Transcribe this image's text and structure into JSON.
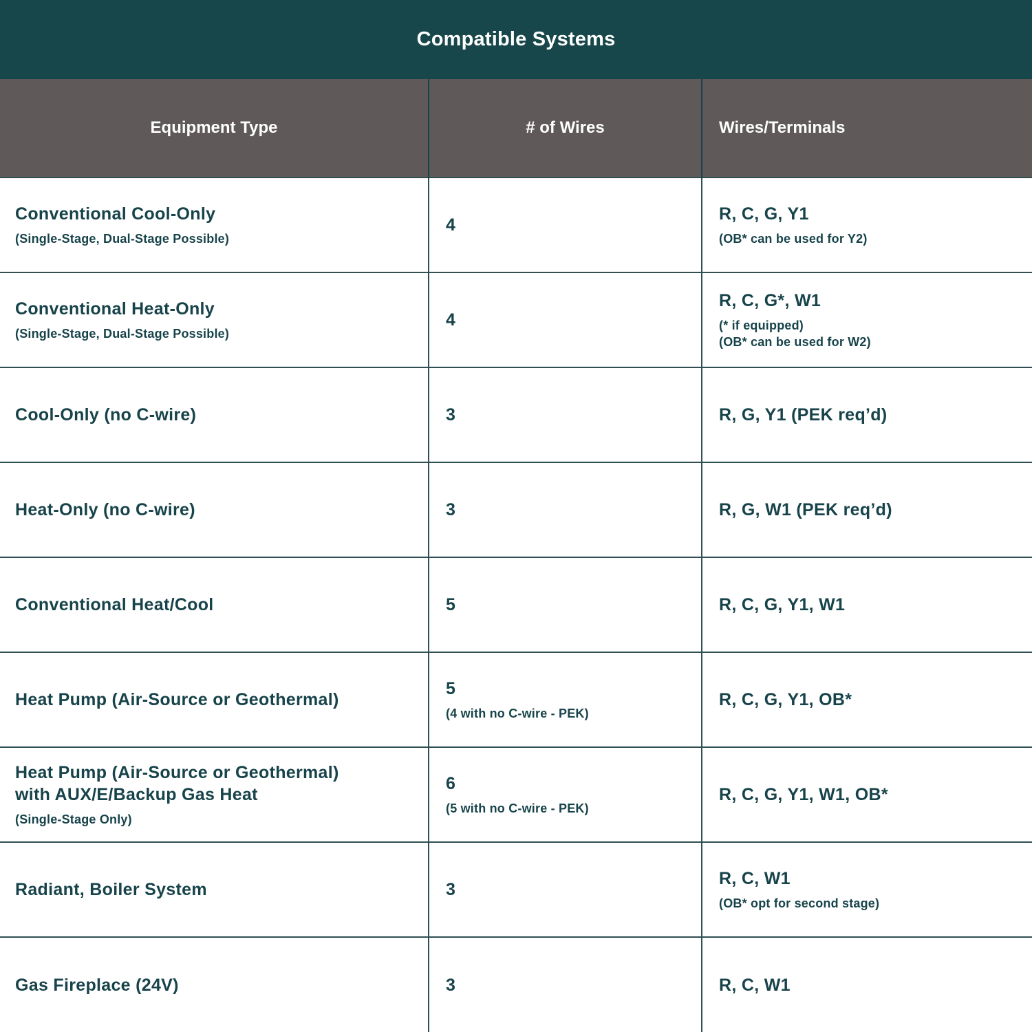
{
  "title": "Compatible Systems",
  "colors": {
    "title_bg": "#17474a",
    "header_bg": "#5f5a59",
    "text": "#17434a"
  },
  "columns": [
    "Equipment Type",
    "# of Wires",
    "Wires/Terminals"
  ],
  "rows": [
    {
      "equipment": {
        "lines": [
          "Conventional Cool-Only"
        ],
        "notes": [
          "(Single-Stage, Dual-Stage Possible)"
        ]
      },
      "wires": {
        "lines": [
          "4"
        ],
        "notes": []
      },
      "terminals": {
        "lines": [
          "R, C, G, Y1"
        ],
        "notes": [
          "(OB* can be used for Y2)"
        ]
      }
    },
    {
      "equipment": {
        "lines": [
          "Conventional Heat-Only"
        ],
        "notes": [
          "(Single-Stage, Dual-Stage Possible)"
        ]
      },
      "wires": {
        "lines": [
          "4"
        ],
        "notes": []
      },
      "terminals": {
        "lines": [
          "R, C, G*, W1"
        ],
        "notes": [
          "(* if equipped)",
          "(OB* can be used for W2)"
        ]
      }
    },
    {
      "equipment": {
        "lines": [
          "Cool-Only (no C-wire)"
        ],
        "notes": []
      },
      "wires": {
        "lines": [
          "3"
        ],
        "notes": []
      },
      "terminals": {
        "lines": [
          "R, G, Y1 (PEK req’d)"
        ],
        "notes": []
      }
    },
    {
      "equipment": {
        "lines": [
          "Heat-Only (no C-wire)"
        ],
        "notes": []
      },
      "wires": {
        "lines": [
          "3"
        ],
        "notes": []
      },
      "terminals": {
        "lines": [
          "R, G, W1 (PEK req’d)"
        ],
        "notes": []
      }
    },
    {
      "equipment": {
        "lines": [
          "Conventional Heat/Cool"
        ],
        "notes": []
      },
      "wires": {
        "lines": [
          "5"
        ],
        "notes": []
      },
      "terminals": {
        "lines": [
          "R, C, G, Y1, W1"
        ],
        "notes": []
      }
    },
    {
      "equipment": {
        "lines": [
          "Heat Pump (Air-Source or Geothermal)"
        ],
        "notes": []
      },
      "wires": {
        "lines": [
          "5"
        ],
        "notes": [
          "(4 with no C-wire - PEK)"
        ]
      },
      "terminals": {
        "lines": [
          "R, C, G, Y1, OB*"
        ],
        "notes": []
      }
    },
    {
      "equipment": {
        "lines": [
          "Heat Pump (Air-Source or Geothermal)",
          "with AUX/E/Backup Gas Heat"
        ],
        "notes": [
          "(Single-Stage Only)"
        ]
      },
      "wires": {
        "lines": [
          "6"
        ],
        "notes": [
          "(5 with no C-wire - PEK)"
        ]
      },
      "terminals": {
        "lines": [
          "R, C, G, Y1, W1, OB*"
        ],
        "notes": []
      }
    },
    {
      "equipment": {
        "lines": [
          "Radiant, Boiler System"
        ],
        "notes": []
      },
      "wires": {
        "lines": [
          "3"
        ],
        "notes": []
      },
      "terminals": {
        "lines": [
          "R, C, W1"
        ],
        "notes": [
          "(OB* opt for second stage)"
        ]
      }
    },
    {
      "equipment": {
        "lines": [
          "Gas Fireplace (24V)"
        ],
        "notes": []
      },
      "wires": {
        "lines": [
          "3"
        ],
        "notes": []
      },
      "terminals": {
        "lines": [
          "R, C, W1"
        ],
        "notes": []
      }
    }
  ]
}
